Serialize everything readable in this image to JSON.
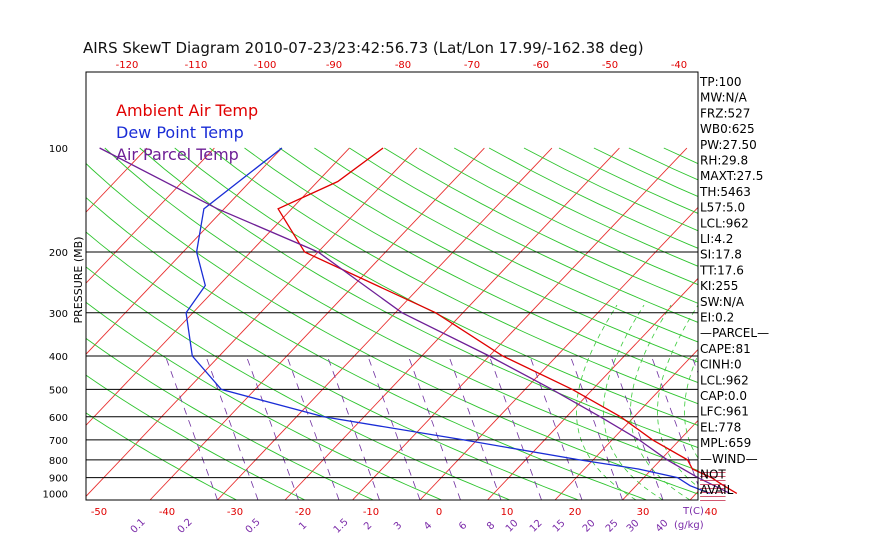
{
  "chart_data": {
    "type": "line",
    "title": "AIRS SkewT Diagram 2010-07-23/23:42:56.73 (Lat/Lon 17.99/-162.38 deg)",
    "ylabel": "PRESSURE (MB)",
    "xlabel": "T(C)",
    "mixing_ratio_unit": "(g/kg)",
    "pressure_ticks": [
      100,
      200,
      300,
      400,
      500,
      600,
      700,
      800,
      900,
      1000
    ],
    "pressure_gridlines": [
      200,
      300,
      400,
      500,
      600,
      700,
      800,
      900
    ],
    "top_temp_ticks": [
      -120,
      -110,
      -100,
      -90,
      -80,
      -70,
      -60,
      -50,
      -40
    ],
    "bottom_temp_ticks": [
      -50,
      -40,
      -30,
      -20,
      -10,
      0,
      10,
      20,
      30,
      40
    ],
    "mixing_ratio_labels": [
      "0.1",
      "0.2",
      "0.5",
      "1",
      "1.5",
      "2",
      "3",
      "4",
      "6",
      "8",
      "10",
      "12",
      "15",
      "20",
      "25",
      "30",
      "40"
    ],
    "legend": [
      {
        "label": "Ambient Air Temp",
        "color": "#e00000"
      },
      {
        "label": "Dew Point Temp",
        "color": "#1a2dd6"
      },
      {
        "label": "Air Parcel Temp",
        "color": "#6e1f96"
      }
    ],
    "series": [
      {
        "name": "Ambient Air Temp",
        "color": "#e00000",
        "points": [
          [
            100,
            -75
          ],
          [
            125,
            -77
          ],
          [
            150,
            -82
          ],
          [
            200,
            -72
          ],
          [
            300,
            -44
          ],
          [
            400,
            -28
          ],
          [
            500,
            -13
          ],
          [
            600,
            -2
          ],
          [
            700,
            6
          ],
          [
            800,
            14
          ],
          [
            850,
            16
          ],
          [
            900,
            20
          ],
          [
            950,
            23
          ],
          [
            1000,
            26
          ]
        ]
      },
      {
        "name": "Dew Point Temp",
        "color": "#1a2dd6",
        "points": [
          [
            100,
            -90
          ],
          [
            150,
            -93
          ],
          [
            200,
            -88
          ],
          [
            250,
            -82
          ],
          [
            300,
            -81
          ],
          [
            400,
            -74
          ],
          [
            500,
            -65
          ],
          [
            600,
            -46
          ],
          [
            700,
            -22
          ],
          [
            800,
            -2
          ],
          [
            850,
            8
          ],
          [
            900,
            15
          ],
          [
            950,
            18
          ],
          [
            1000,
            22
          ]
        ]
      },
      {
        "name": "Air Parcel Temp",
        "color": "#6e1f96",
        "points": [
          [
            100,
            -117
          ],
          [
            150,
            -91
          ],
          [
            200,
            -70
          ],
          [
            300,
            -49
          ],
          [
            400,
            -30
          ],
          [
            500,
            -16
          ],
          [
            600,
            -5
          ],
          [
            700,
            4
          ],
          [
            800,
            11
          ],
          [
            900,
            18
          ],
          [
            1000,
            25
          ]
        ]
      }
    ],
    "indices": [
      "TP:100",
      "MW:N/A",
      "FRZ:527",
      "WB0:625",
      "PW:27.50",
      "RH:29.8",
      "MAXT:27.5",
      "TH:5463",
      "L57:5.0",
      "LCL:962",
      "LI:4.2",
      "SI:17.8",
      "TT:17.6",
      "KI:255",
      "SW:N/A",
      "EI:0.2",
      "—PARCEL—",
      "CAPE:81",
      "CINH:0",
      "LCL:962",
      "CAP:0.0",
      "LFC:961",
      "EL:778",
      "MPL:659",
      "—WIND—",
      "NOT",
      "AVAIL"
    ]
  }
}
